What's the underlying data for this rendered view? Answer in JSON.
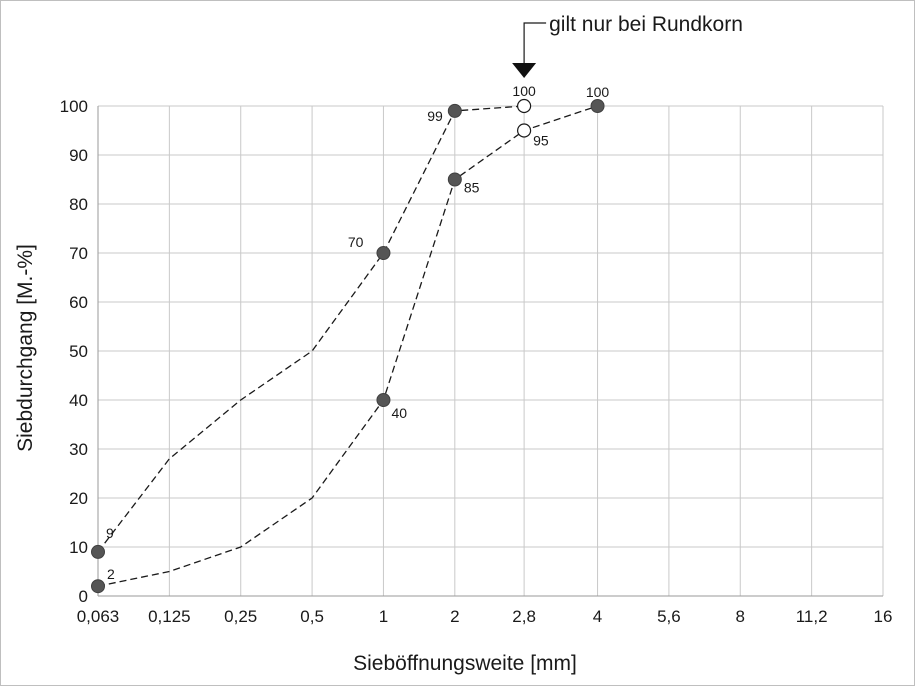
{
  "chart_data": {
    "type": "line",
    "xlabel": "Sieböffnungsweite [mm]",
    "ylabel": "Siebdurchgang [M.-%]",
    "x_categories": [
      "0,063",
      "0,125",
      "0,25",
      "0,5",
      "1",
      "2",
      "2,8",
      "4",
      "5,6",
      "8",
      "11,2",
      "16"
    ],
    "x_scale": "log",
    "ylim": [
      0,
      100
    ],
    "yticks": [
      0,
      10,
      20,
      30,
      40,
      50,
      60,
      70,
      80,
      90,
      100
    ],
    "grid": true,
    "series": [
      {
        "line": "dashed",
        "points": [
          {
            "x": 0.063,
            "y": 9,
            "marker": "filled",
            "label": "9"
          },
          {
            "x": 0.125,
            "y": 28
          },
          {
            "x": 0.25,
            "y": 40
          },
          {
            "x": 0.5,
            "y": 50
          },
          {
            "x": 1,
            "y": 70,
            "marker": "filled",
            "label": "70"
          },
          {
            "x": 2,
            "y": 99,
            "marker": "filled",
            "label": "99"
          },
          {
            "x": 2.8,
            "y": 100,
            "marker": "open",
            "label": "100"
          }
        ]
      },
      {
        "line": "dashed",
        "points": [
          {
            "x": 0.063,
            "y": 2,
            "marker": "filled",
            "label": "2"
          },
          {
            "x": 0.125,
            "y": 5
          },
          {
            "x": 0.25,
            "y": 10
          },
          {
            "x": 0.5,
            "y": 20
          },
          {
            "x": 1,
            "y": 40,
            "marker": "filled",
            "label": "40"
          },
          {
            "x": 2,
            "y": 85,
            "marker": "filled",
            "label": "85"
          },
          {
            "x": 2.8,
            "y": 95,
            "marker": "open",
            "label": "95"
          },
          {
            "x": 4,
            "y": 100,
            "marker": "filled",
            "label": "100"
          }
        ]
      }
    ],
    "annotations": [
      {
        "text": "gilt nur bei Rundkorn",
        "x": 2.8,
        "arrow": "down"
      }
    ]
  }
}
